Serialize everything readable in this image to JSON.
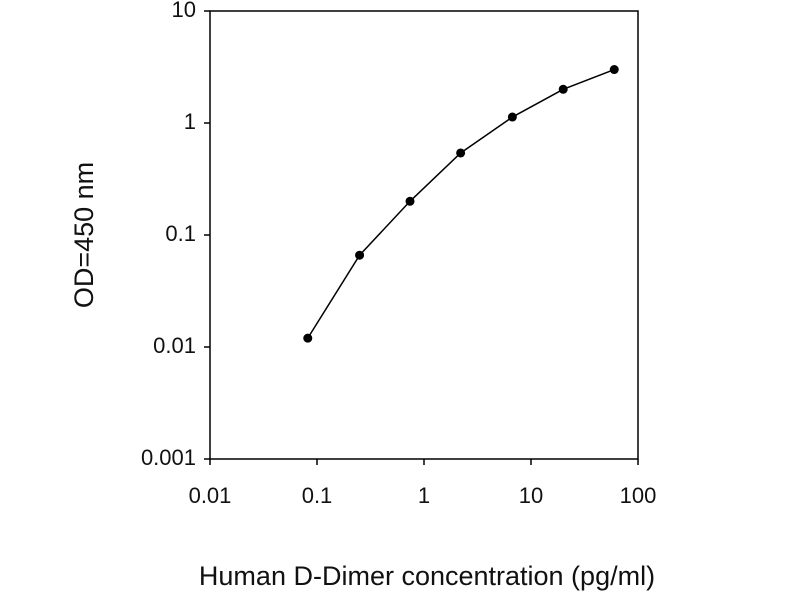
{
  "chart_data": {
    "type": "line",
    "xlabel": "Human D-Dimer concentration (pg/ml)",
    "ylabel": "OD=450 nm",
    "x": [
      0.082,
      0.25,
      0.74,
      2.2,
      6.7,
      20,
      60
    ],
    "values": [
      0.012,
      0.066,
      0.2,
      0.54,
      1.13,
      2.0,
      3.0
    ],
    "color": "#000000",
    "xscale": "log",
    "yscale": "log",
    "xlim": [
      0.01,
      100
    ],
    "ylim": [
      0.001,
      10
    ],
    "xticks": [
      0.01,
      0.1,
      1,
      10,
      100
    ],
    "yticks": [
      0.001,
      0.01,
      0.1,
      1,
      10
    ],
    "grid": false
  }
}
